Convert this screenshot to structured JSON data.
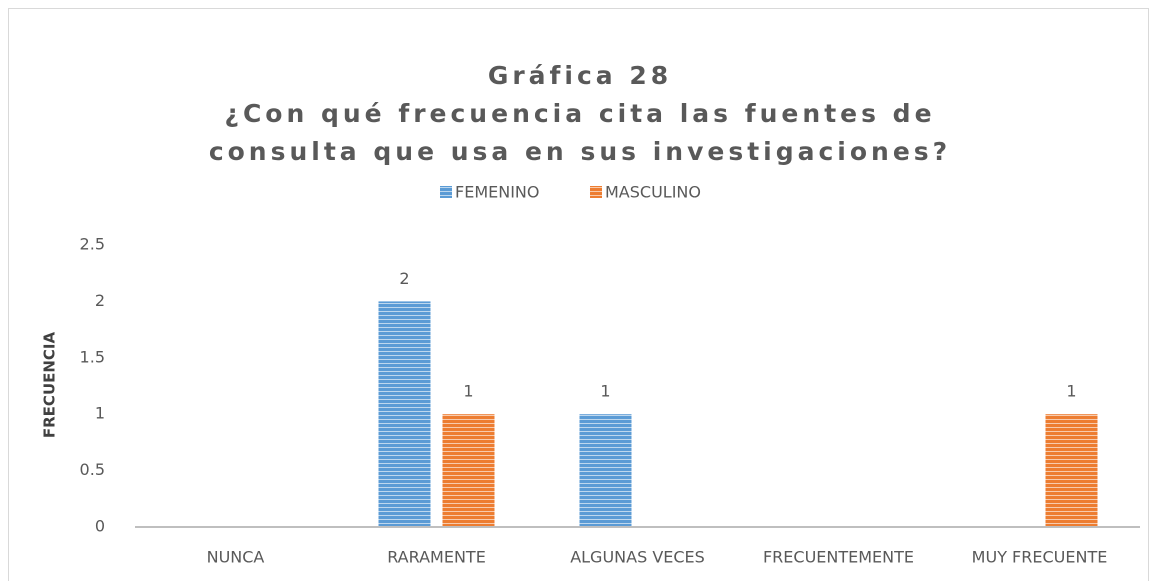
{
  "chart_data": {
    "type": "bar",
    "title": "Gráfica 28",
    "subtitle": "¿Con qué frecuencia cita las fuentes de consulta que usa en sus investigaciones?",
    "y_label": "FRECUENCIA",
    "categories": [
      "NUNCA",
      "RARAMENTE",
      "ALGUNAS VECES",
      "FRECUENTEMENTE",
      "MUY FRECUENTE"
    ],
    "series": [
      {
        "name": "FEMENINO",
        "color": "#5b9bd5",
        "values": [
          null,
          2,
          1,
          null,
          null
        ]
      },
      {
        "name": "MASCULINO",
        "color": "#ed7d31",
        "values": [
          null,
          1,
          null,
          null,
          1
        ]
      }
    ],
    "ylim": [
      0,
      2.5
    ],
    "yticks": [
      0,
      0.5,
      1,
      1.5,
      2,
      2.5
    ],
    "grid": false,
    "legend": "top"
  }
}
